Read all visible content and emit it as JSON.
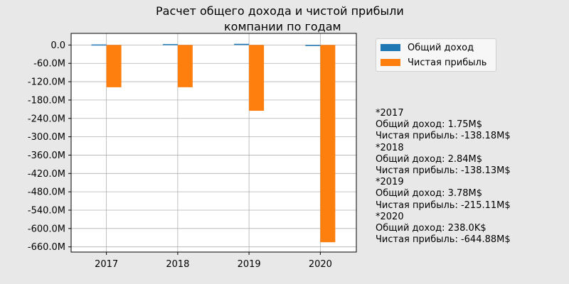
{
  "chart_data": {
    "type": "bar",
    "title_lines": [
      "Расчет общего дохода и чистой прибыли",
      "компании по годам"
    ],
    "categories": [
      "2017",
      "2018",
      "2019",
      "2020"
    ],
    "series": [
      {
        "name": "Общий доход",
        "values": [
          1.75,
          2.84,
          3.78,
          0.238
        ],
        "color": "#1f77b4"
      },
      {
        "name": "Чистая прибыль",
        "values": [
          -138.18,
          -138.13,
          -215.11,
          -644.88
        ],
        "color": "#ff7f0e"
      }
    ],
    "unit": "M",
    "ylim": [
      -677,
      38
    ],
    "y_ticks": [
      0,
      -60,
      -120,
      -180,
      -240,
      -300,
      -360,
      -420,
      -480,
      -540,
      -600,
      -660
    ],
    "y_tick_labels": [
      "0.0",
      "-60.0M",
      "-120.0M",
      "-180.0M",
      "-240.0M",
      "-300.0M",
      "-360.0M",
      "-420.0M",
      "-480.0M",
      "-540.0M",
      "-600.0M",
      "-660.0M"
    ],
    "grid": true,
    "legend_position": "upper right, outside plot"
  },
  "notes": [
    {
      "year": "*2017",
      "income": "Общий доход: 1.75M$",
      "profit": "Чистая прибыль: -138.18M$"
    },
    {
      "year": "*2018",
      "income": "Общий доход: 2.84M$",
      "profit": "Чистая прибыль: -138.13M$"
    },
    {
      "year": "*2019",
      "income": "Общий доход: 3.78M$",
      "profit": "Чистая прибыль: -215.11M$"
    },
    {
      "year": "*2020",
      "income": "Общий доход: 238.0K$",
      "profit": "Чистая прибыль: -644.88M$"
    }
  ]
}
